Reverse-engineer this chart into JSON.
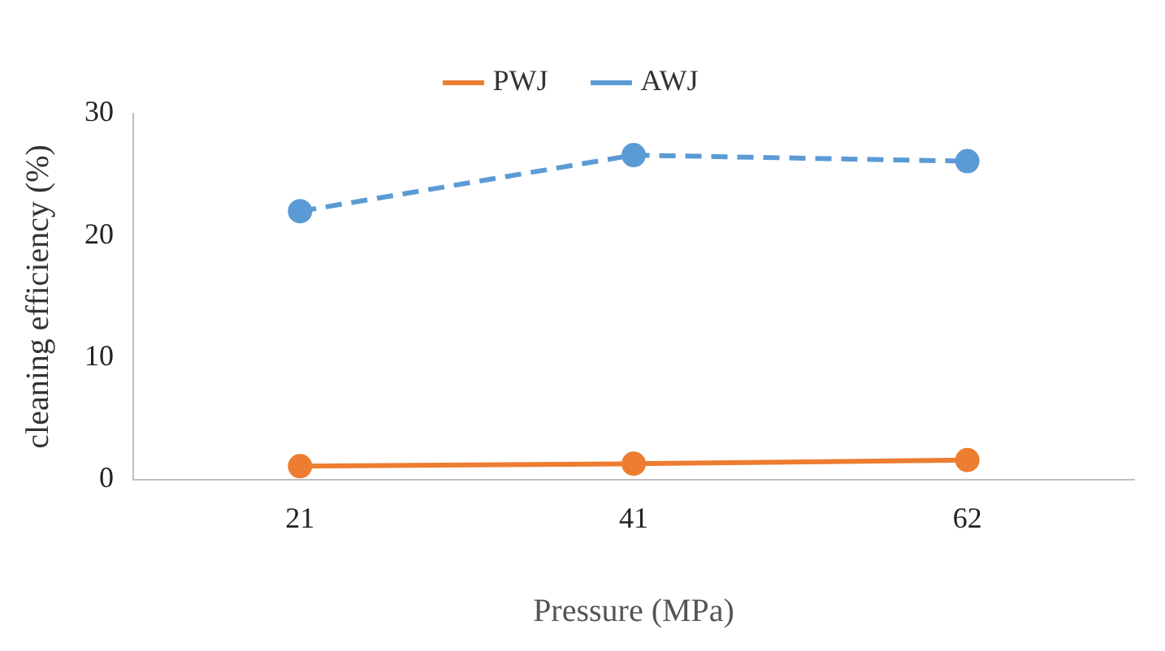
{
  "chart_data": {
    "type": "line",
    "xlabel": "Pressure (MPa)",
    "ylabel": "cleaning efficiency (%)",
    "categories": [
      "21",
      "41",
      "62"
    ],
    "series": [
      {
        "name": "PWJ",
        "color": "#ed7d31",
        "values": [
          1.1,
          1.3,
          1.6
        ],
        "line_style": "solid"
      },
      {
        "name": "AWJ",
        "color": "#5b9bd5",
        "values": [
          22,
          26.6,
          26.1
        ],
        "line_style": "dashed"
      }
    ],
    "ylim": [
      0,
      30
    ],
    "yticks": [
      0,
      10,
      20,
      30
    ],
    "grid": false,
    "legend": "top",
    "marker": "circle"
  }
}
